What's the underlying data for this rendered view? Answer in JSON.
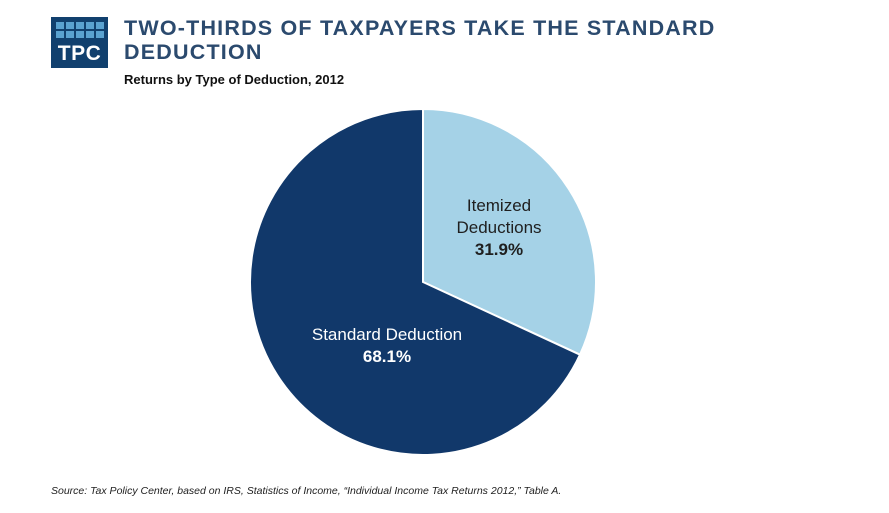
{
  "logo": {
    "text": "TPC"
  },
  "header": {
    "title": "TWO-THIRDS OF TAXPAYERS TAKE THE STANDARD DEDUCTION",
    "subtitle": "Returns by Type of Deduction, 2012"
  },
  "chart_data": {
    "type": "pie",
    "title": "TWO-THIRDS OF TAXPAYERS TAKE THE STANDARD DEDUCTION",
    "subtitle": "Returns by Type of Deduction, 2012",
    "slices": [
      {
        "label_lines": [
          "Itemized",
          "Deductions"
        ],
        "value": 31.9,
        "value_label": "31.9%",
        "color": "#a5d2e7"
      },
      {
        "label_lines": [
          "Standard Deduction"
        ],
        "value": 68.1,
        "value_label": "68.1%",
        "color": "#11386a"
      }
    ],
    "start": "12 o'clock",
    "direction": "clockwise"
  },
  "footer": {
    "source": "Source: Tax Policy Center,  based on IRS, Statistics of Income, “Individual Income Tax Returns 2012,” Table A."
  }
}
